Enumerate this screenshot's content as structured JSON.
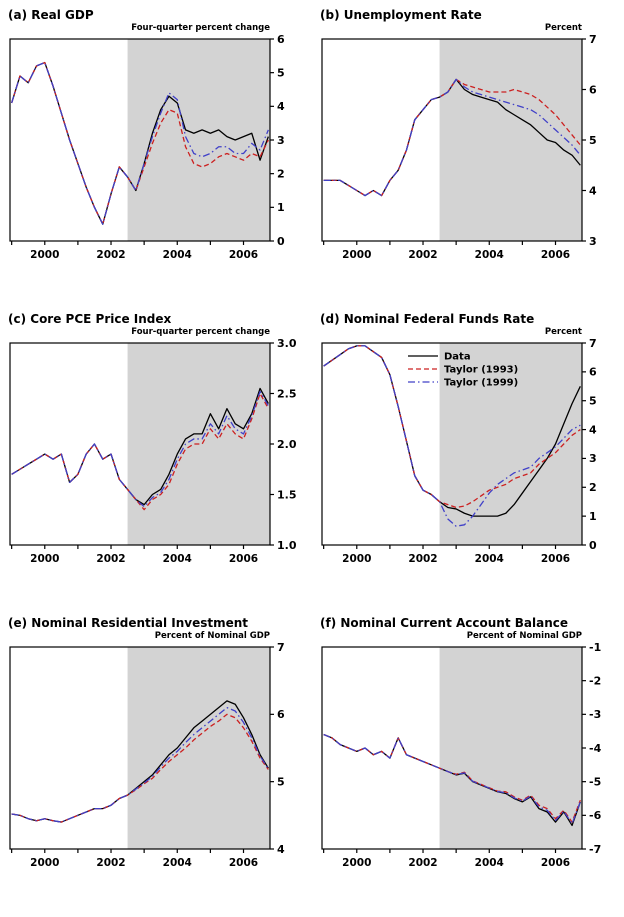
{
  "figure": {
    "background": "#ffffff"
  },
  "colors": {
    "data": "#000000",
    "taylor1993": "#cc2020",
    "taylor1999": "#4040c8",
    "shade": "#d3d3d3",
    "axis": "#000000"
  },
  "x": {
    "lim": [
      1998.95,
      2006.8
    ],
    "ticks": [
      2000,
      2002,
      2004,
      2006
    ],
    "tick_labels": [
      "2000",
      "2002",
      "2004",
      "2006"
    ],
    "minor_ticks": [
      1999,
      2000,
      2001,
      2002,
      2003,
      2004,
      2005,
      2006
    ],
    "shade_start": 2002.5,
    "values": [
      1999.0,
      1999.25,
      1999.5,
      1999.75,
      2000.0,
      2000.25,
      2000.5,
      2000.75,
      2001.0,
      2001.25,
      2001.5,
      2001.75,
      2002.0,
      2002.25,
      2002.5,
      2002.75,
      2003.0,
      2003.25,
      2003.5,
      2003.75,
      2004.0,
      2004.25,
      2004.5,
      2004.75,
      2005.0,
      2005.25,
      2005.5,
      2005.75,
      2006.0,
      2006.25,
      2006.5,
      2006.75
    ]
  },
  "chart_data": [
    {
      "type": "line",
      "id": "a",
      "title": "(a) Real GDP",
      "unit": "Four-quarter percent change",
      "ylim": [
        0,
        6
      ],
      "yticks": [
        0,
        1,
        2,
        3,
        4,
        5,
        6
      ],
      "ytick_labels": [
        "0",
        "1",
        "2",
        "3",
        "4",
        "5",
        "6"
      ],
      "show_legend": false,
      "series": [
        {
          "name": "Data",
          "style": "solid",
          "color_key": "data",
          "values": [
            4.1,
            4.9,
            4.7,
            5.2,
            5.3,
            4.6,
            3.8,
            3.0,
            2.3,
            1.6,
            1.0,
            0.5,
            1.4,
            2.2,
            1.9,
            1.5,
            2.3,
            3.2,
            3.9,
            4.3,
            4.1,
            3.3,
            3.2,
            3.3,
            3.2,
            3.3,
            3.1,
            3.0,
            3.1,
            3.2,
            2.4,
            3.1
          ]
        },
        {
          "name": "Taylor (1993)",
          "style": "dashed",
          "color_key": "taylor1993",
          "values": [
            4.1,
            4.9,
            4.7,
            5.2,
            5.3,
            4.6,
            3.8,
            3.0,
            2.3,
            1.6,
            1.0,
            0.5,
            1.4,
            2.2,
            1.9,
            1.5,
            2.2,
            2.9,
            3.5,
            3.9,
            3.8,
            2.8,
            2.3,
            2.2,
            2.3,
            2.5,
            2.6,
            2.5,
            2.4,
            2.6,
            2.5,
            3.0
          ]
        },
        {
          "name": "Taylor (1999)",
          "style": "dashdot",
          "color_key": "taylor1999",
          "values": [
            4.1,
            4.9,
            4.7,
            5.2,
            5.3,
            4.6,
            3.8,
            3.0,
            2.3,
            1.6,
            1.0,
            0.5,
            1.4,
            2.2,
            1.9,
            1.5,
            2.3,
            3.1,
            3.8,
            4.4,
            4.2,
            3.1,
            2.6,
            2.5,
            2.6,
            2.8,
            2.8,
            2.6,
            2.6,
            2.9,
            2.7,
            3.3
          ]
        }
      ]
    },
    {
      "type": "line",
      "id": "b",
      "title": "(b) Unemployment Rate",
      "unit": "Percent",
      "ylim": [
        3,
        7
      ],
      "yticks": [
        3,
        4,
        5,
        6,
        7
      ],
      "ytick_labels": [
        "3",
        "4",
        "5",
        "6",
        "7"
      ],
      "show_legend": false,
      "series": [
        {
          "name": "Data",
          "style": "solid",
          "color_key": "data",
          "values": [
            4.2,
            4.2,
            4.2,
            4.1,
            4.0,
            3.9,
            4.0,
            3.9,
            4.2,
            4.4,
            4.8,
            5.4,
            5.6,
            5.8,
            5.85,
            5.95,
            6.2,
            6.0,
            5.9,
            5.85,
            5.8,
            5.75,
            5.6,
            5.5,
            5.4,
            5.3,
            5.15,
            5.0,
            4.95,
            4.8,
            4.7,
            4.5
          ]
        },
        {
          "name": "Taylor (1993)",
          "style": "dashed",
          "color_key": "taylor1993",
          "values": [
            4.2,
            4.2,
            4.2,
            4.1,
            4.0,
            3.9,
            4.0,
            3.9,
            4.2,
            4.4,
            4.8,
            5.4,
            5.6,
            5.8,
            5.85,
            5.95,
            6.2,
            6.1,
            6.05,
            6.0,
            5.95,
            5.95,
            5.95,
            6.0,
            5.95,
            5.9,
            5.8,
            5.65,
            5.5,
            5.3,
            5.1,
            4.9
          ]
        },
        {
          "name": "Taylor (1999)",
          "style": "dashdot",
          "color_key": "taylor1999",
          "values": [
            4.2,
            4.2,
            4.2,
            4.1,
            4.0,
            3.9,
            4.0,
            3.9,
            4.2,
            4.4,
            4.8,
            5.4,
            5.6,
            5.8,
            5.85,
            5.95,
            6.2,
            6.05,
            5.95,
            5.9,
            5.85,
            5.8,
            5.75,
            5.7,
            5.65,
            5.6,
            5.5,
            5.35,
            5.2,
            5.05,
            4.9,
            4.7
          ]
        }
      ]
    },
    {
      "type": "line",
      "id": "c",
      "title": "(c) Core PCE Price Index",
      "unit": "Four-quarter percent change",
      "ylim": [
        1.0,
        3.0
      ],
      "yticks": [
        1.0,
        1.5,
        2.0,
        2.5,
        3.0
      ],
      "ytick_labels": [
        "1.0",
        "1.5",
        "2.0",
        "2.5",
        "3.0"
      ],
      "show_legend": false,
      "series": [
        {
          "name": "Data",
          "style": "solid",
          "color_key": "data",
          "values": [
            1.7,
            1.75,
            1.8,
            1.85,
            1.9,
            1.85,
            1.9,
            1.62,
            1.7,
            1.9,
            2.0,
            1.85,
            1.9,
            1.65,
            1.55,
            1.45,
            1.4,
            1.5,
            1.55,
            1.7,
            1.9,
            2.05,
            2.1,
            2.1,
            2.3,
            2.15,
            2.35,
            2.2,
            2.15,
            2.3,
            2.55,
            2.4
          ]
        },
        {
          "name": "Taylor (1993)",
          "style": "dashed",
          "color_key": "taylor1993",
          "values": [
            1.7,
            1.75,
            1.8,
            1.85,
            1.9,
            1.85,
            1.9,
            1.62,
            1.7,
            1.9,
            2.0,
            1.85,
            1.9,
            1.65,
            1.55,
            1.45,
            1.35,
            1.45,
            1.5,
            1.6,
            1.8,
            1.95,
            2.0,
            2.0,
            2.15,
            2.05,
            2.2,
            2.1,
            2.05,
            2.25,
            2.5,
            2.35
          ]
        },
        {
          "name": "Taylor (1999)",
          "style": "dashdot",
          "color_key": "taylor1999",
          "values": [
            1.7,
            1.75,
            1.8,
            1.85,
            1.9,
            1.85,
            1.9,
            1.62,
            1.7,
            1.9,
            2.0,
            1.85,
            1.9,
            1.65,
            1.55,
            1.45,
            1.38,
            1.47,
            1.52,
            1.65,
            1.85,
            2.0,
            2.05,
            2.05,
            2.2,
            2.1,
            2.28,
            2.15,
            2.1,
            2.28,
            2.52,
            2.38
          ]
        }
      ]
    },
    {
      "type": "line",
      "id": "d",
      "title": "(d) Nominal Federal Funds Rate",
      "unit": "Percent",
      "ylim": [
        0,
        7
      ],
      "yticks": [
        0,
        1,
        2,
        3,
        4,
        5,
        6,
        7
      ],
      "ytick_labels": [
        "0",
        "1",
        "2",
        "3",
        "4",
        "5",
        "6",
        "7"
      ],
      "show_legend": true,
      "legend_entries": [
        "Data",
        "Taylor (1993)",
        "Taylor (1999)"
      ],
      "series": [
        {
          "name": "Data",
          "style": "solid",
          "color_key": "data",
          "values": [
            6.2,
            6.4,
            6.6,
            6.8,
            6.9,
            6.9,
            6.7,
            6.5,
            5.9,
            4.8,
            3.6,
            2.4,
            1.9,
            1.75,
            1.5,
            1.3,
            1.25,
            1.1,
            1.0,
            1.0,
            1.0,
            1.0,
            1.1,
            1.4,
            1.8,
            2.2,
            2.6,
            3.0,
            3.5,
            4.2,
            4.9,
            5.5
          ]
        },
        {
          "name": "Taylor (1993)",
          "style": "dashed",
          "color_key": "taylor1993",
          "values": [
            6.2,
            6.4,
            6.6,
            6.8,
            6.9,
            6.9,
            6.7,
            6.5,
            5.9,
            4.8,
            3.6,
            2.4,
            1.9,
            1.75,
            1.5,
            1.4,
            1.3,
            1.35,
            1.5,
            1.7,
            1.9,
            2.0,
            2.1,
            2.3,
            2.4,
            2.5,
            2.8,
            3.0,
            3.2,
            3.5,
            3.8,
            4.0
          ]
        },
        {
          "name": "Taylor (1999)",
          "style": "dashdot",
          "color_key": "taylor1999",
          "values": [
            6.2,
            6.4,
            6.6,
            6.8,
            6.9,
            6.9,
            6.7,
            6.5,
            5.9,
            4.8,
            3.6,
            2.4,
            1.9,
            1.75,
            1.5,
            0.9,
            0.65,
            0.7,
            1.0,
            1.4,
            1.8,
            2.1,
            2.3,
            2.5,
            2.6,
            2.7,
            3.0,
            3.2,
            3.4,
            3.7,
            4.0,
            4.15
          ]
        }
      ]
    },
    {
      "type": "line",
      "id": "e",
      "title": "(e) Nominal Residential Investment",
      "unit": "Percent of Nominal GDP",
      "ylim": [
        4,
        7
      ],
      "yticks": [
        4,
        5,
        6,
        7
      ],
      "ytick_labels": [
        "4",
        "5",
        "6",
        "7"
      ],
      "show_legend": false,
      "series": [
        {
          "name": "Data",
          "style": "solid",
          "color_key": "data",
          "values": [
            4.52,
            4.5,
            4.45,
            4.42,
            4.45,
            4.42,
            4.4,
            4.45,
            4.5,
            4.55,
            4.6,
            4.6,
            4.65,
            4.75,
            4.8,
            4.9,
            5.0,
            5.1,
            5.25,
            5.4,
            5.5,
            5.65,
            5.8,
            5.9,
            6.0,
            6.1,
            6.2,
            6.15,
            5.95,
            5.7,
            5.4,
            5.2
          ]
        },
        {
          "name": "Taylor (1993)",
          "style": "dashed",
          "color_key": "taylor1993",
          "values": [
            4.52,
            4.5,
            4.45,
            4.42,
            4.45,
            4.42,
            4.4,
            4.45,
            4.5,
            4.55,
            4.6,
            4.6,
            4.65,
            4.75,
            4.8,
            4.88,
            4.97,
            5.05,
            5.18,
            5.3,
            5.4,
            5.5,
            5.62,
            5.72,
            5.82,
            5.9,
            6.0,
            5.95,
            5.8,
            5.6,
            5.35,
            5.18
          ]
        },
        {
          "name": "Taylor (1999)",
          "style": "dashdot",
          "color_key": "taylor1999",
          "values": [
            4.52,
            4.5,
            4.45,
            4.42,
            4.45,
            4.42,
            4.4,
            4.45,
            4.5,
            4.55,
            4.6,
            4.6,
            4.65,
            4.75,
            4.8,
            4.89,
            4.98,
            5.08,
            5.22,
            5.35,
            5.45,
            5.58,
            5.7,
            5.8,
            5.9,
            6.0,
            6.1,
            6.05,
            5.88,
            5.65,
            5.38,
            5.19
          ]
        }
      ]
    },
    {
      "type": "line",
      "id": "f",
      "title": "(f) Nominal Current Account Balance",
      "unit": "Percent of Nominal GDP",
      "ylim": [
        -7,
        -1
      ],
      "yticks": [
        -7,
        -6,
        -5,
        -4,
        -3,
        -2,
        -1
      ],
      "ytick_labels": [
        "-7",
        "-6",
        "-5",
        "-4",
        "-3",
        "-2",
        "-1"
      ],
      "show_legend": false,
      "series": [
        {
          "name": "Data",
          "style": "solid",
          "color_key": "data",
          "values": [
            -3.6,
            -3.7,
            -3.9,
            -4.0,
            -4.1,
            -4.0,
            -4.2,
            -4.1,
            -4.3,
            -3.7,
            -4.2,
            -4.3,
            -4.4,
            -4.5,
            -4.6,
            -4.7,
            -4.8,
            -4.75,
            -5.0,
            -5.1,
            -5.2,
            -5.3,
            -5.35,
            -5.5,
            -5.6,
            -5.45,
            -5.8,
            -5.9,
            -6.2,
            -5.9,
            -6.3,
            -5.6
          ]
        },
        {
          "name": "Taylor (1993)",
          "style": "dashed",
          "color_key": "taylor1993",
          "values": [
            -3.6,
            -3.7,
            -3.9,
            -4.0,
            -4.1,
            -4.0,
            -4.2,
            -4.1,
            -4.3,
            -3.7,
            -4.2,
            -4.3,
            -4.4,
            -4.5,
            -4.6,
            -4.7,
            -4.78,
            -4.72,
            -4.98,
            -5.08,
            -5.18,
            -5.28,
            -5.3,
            -5.45,
            -5.55,
            -5.4,
            -5.7,
            -5.8,
            -6.1,
            -5.85,
            -6.2,
            -5.55
          ]
        },
        {
          "name": "Taylor (1999)",
          "style": "dashdot",
          "color_key": "taylor1999",
          "values": [
            -3.6,
            -3.7,
            -3.9,
            -4.0,
            -4.1,
            -4.0,
            -4.2,
            -4.1,
            -4.3,
            -3.7,
            -4.2,
            -4.3,
            -4.4,
            -4.5,
            -4.6,
            -4.7,
            -4.79,
            -4.74,
            -4.99,
            -5.09,
            -5.19,
            -5.29,
            -5.33,
            -5.48,
            -5.58,
            -5.43,
            -5.75,
            -5.85,
            -6.15,
            -5.88,
            -6.25,
            -5.6
          ]
        }
      ]
    }
  ]
}
